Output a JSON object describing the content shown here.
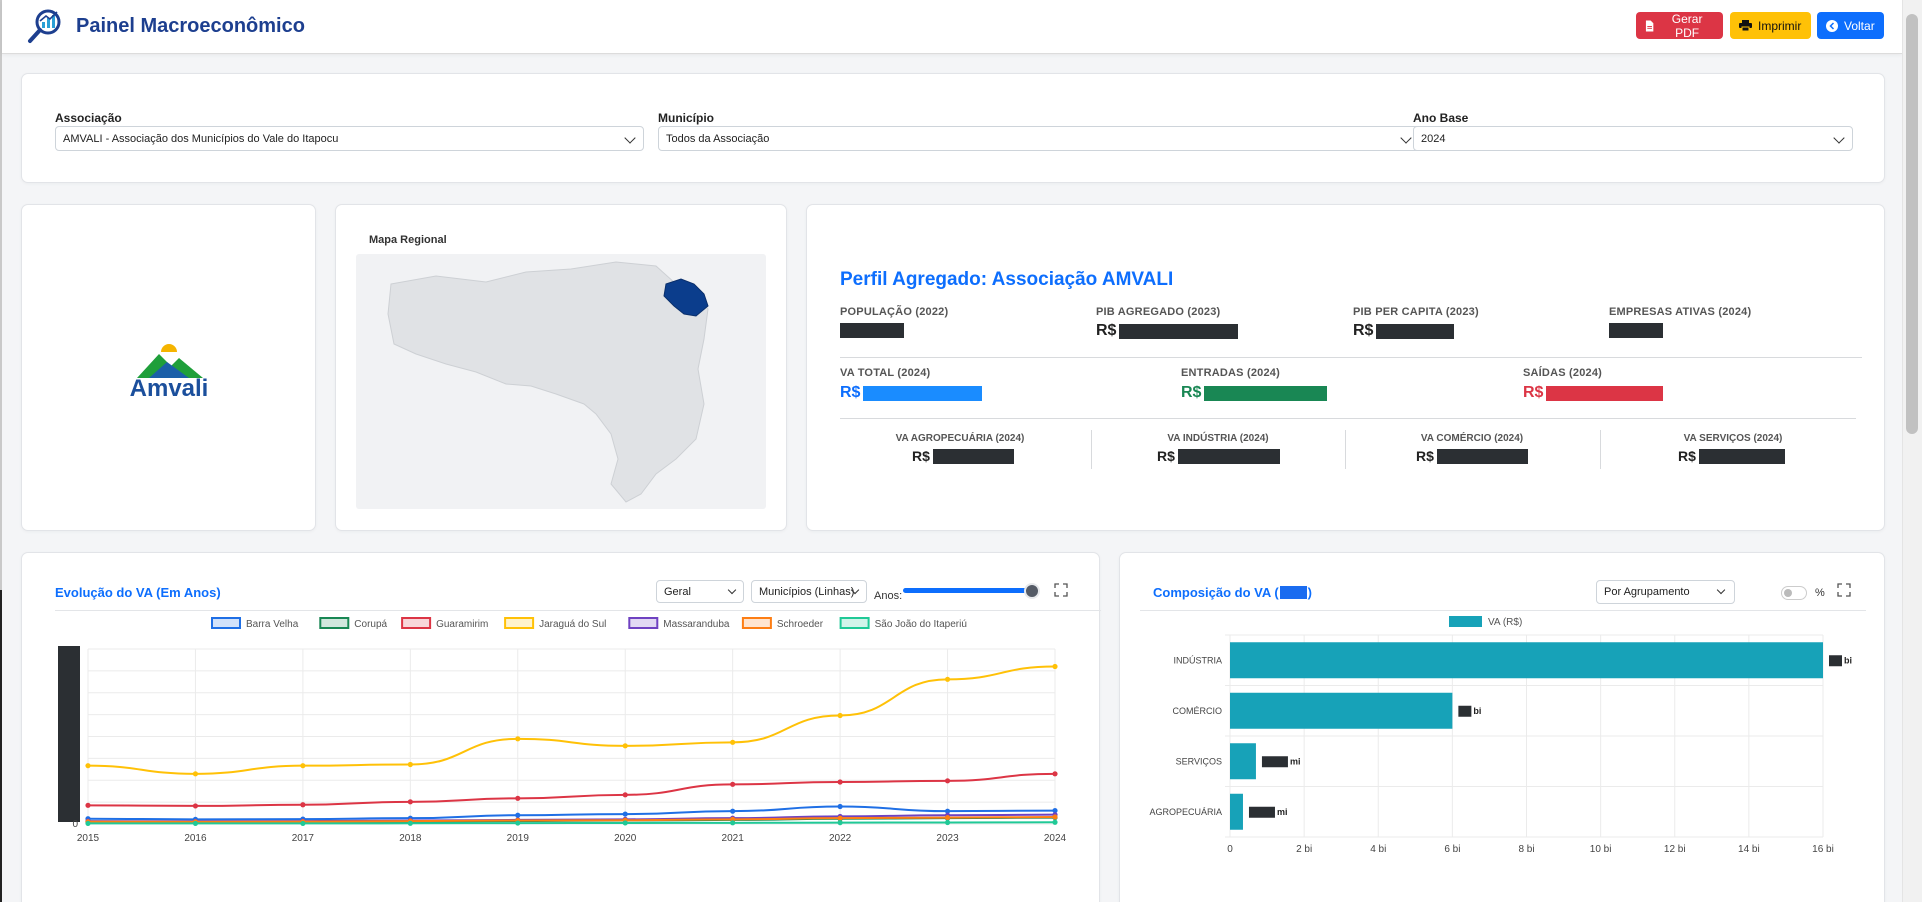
{
  "header": {
    "title": "Painel Macroeconômico",
    "buttons": {
      "pdf": "Gerar PDF",
      "print": "Imprimir",
      "back": "Voltar"
    }
  },
  "filters": {
    "association": {
      "label": "Associação",
      "value": "AMVALI - Associação dos Municípios do Vale do Itapocu"
    },
    "municipality": {
      "label": "Município",
      "value": "Todos da Associação"
    },
    "base_year": {
      "label": "Ano Base",
      "value": "2024"
    }
  },
  "logo": {
    "text": "Amvali"
  },
  "map": {
    "title": "Mapa Regional"
  },
  "profile": {
    "title": "Perfil Agregado: Associação AMVALI",
    "currency": "R$",
    "stats": {
      "population": "POPULAÇÃO (2022)",
      "pib": "PIB AGREGADO (2023)",
      "pib_pc": "PIB PER CAPITA (2023)",
      "companies": "EMPRESAS ATIVAS (2024)",
      "va_total": "VA TOTAL (2024)",
      "entradas": "ENTRADAS (2024)",
      "saidas": "SAÍDAS (2024)",
      "va_agro": "VA AGROPECUÁRIA (2024)",
      "va_ind": "VA INDÚSTRIA (2024)",
      "va_com": "VA COMÉRCIO (2024)",
      "va_serv": "VA SERVIÇOS (2024)"
    },
    "colors": {
      "title": "#0d6efd",
      "va_total": "#0d6efd",
      "entradas": "#198754",
      "saidas": "#dc3545"
    }
  },
  "evolution": {
    "title": "Evolução do VA (Em Anos)",
    "select_type": "Geral",
    "select_view": "Municípios (Linhas)",
    "years_label": "Anos:"
  },
  "composition": {
    "title": "Composição do VA (",
    "title_suffix": ")",
    "select_group": "Por Agrupamento",
    "percent_label": "%"
  },
  "chart_data": [
    {
      "type": "line",
      "x": [
        2015,
        2016,
        2017,
        2018,
        2019,
        2020,
        2021,
        2022,
        2023,
        2024
      ],
      "ylim": [
        0,
        15
      ],
      "y_tick_labels": [
        "0"
      ],
      "series": [
        {
          "name": "Barra Velha",
          "color": "#1f6fe5",
          "values": [
            0.45,
            0.4,
            0.42,
            0.5,
            0.75,
            0.85,
            1.1,
            1.5,
            1.1,
            1.15
          ]
        },
        {
          "name": "Corupá",
          "color": "#198754",
          "values": [
            0.15,
            0.12,
            0.14,
            0.18,
            0.25,
            0.3,
            0.35,
            0.45,
            0.5,
            0.55
          ]
        },
        {
          "name": "Guaramirim",
          "color": "#dc3545",
          "values": [
            1.6,
            1.55,
            1.65,
            1.9,
            2.2,
            2.5,
            3.4,
            3.6,
            3.7,
            4.3
          ]
        },
        {
          "name": "Jaraguá do Sul",
          "color": "#ffc107",
          "values": [
            5.0,
            4.3,
            5.0,
            5.1,
            7.3,
            6.7,
            7.0,
            9.3,
            12.4,
            13.5
          ]
        },
        {
          "name": "Massaranduba",
          "color": "#6f42c1",
          "values": [
            0.25,
            0.22,
            0.25,
            0.3,
            0.35,
            0.4,
            0.5,
            0.65,
            0.75,
            0.8
          ]
        },
        {
          "name": "Schroeder",
          "color": "#fd7e14",
          "values": [
            0.2,
            0.18,
            0.2,
            0.25,
            0.3,
            0.32,
            0.4,
            0.5,
            0.55,
            0.6
          ]
        },
        {
          "name": "São João do Itaperiú",
          "color": "#20c997",
          "values": [
            0.05,
            0.05,
            0.05,
            0.06,
            0.08,
            0.09,
            0.1,
            0.12,
            0.13,
            0.15
          ]
        }
      ]
    },
    {
      "type": "bar",
      "orientation": "horizontal",
      "categories": [
        "INDÚSTRIA",
        "COMÉRCIO",
        "SERVIÇOS",
        "AGROPECUÁRIA"
      ],
      "series": [
        {
          "name": "VA (R$)",
          "color": "#17a2b8",
          "values": [
            16.0,
            6.0,
            0.7,
            0.35
          ],
          "unit_suffixes": [
            "bi",
            "bi",
            "mi",
            "mi"
          ]
        }
      ],
      "xlim": [
        0,
        16
      ],
      "x_tick_labels": [
        "0",
        "2 bi",
        "4 bi",
        "6 bi",
        "8 bi",
        "10 bi",
        "12 bi",
        "14 bi",
        "16 bi"
      ]
    }
  ]
}
